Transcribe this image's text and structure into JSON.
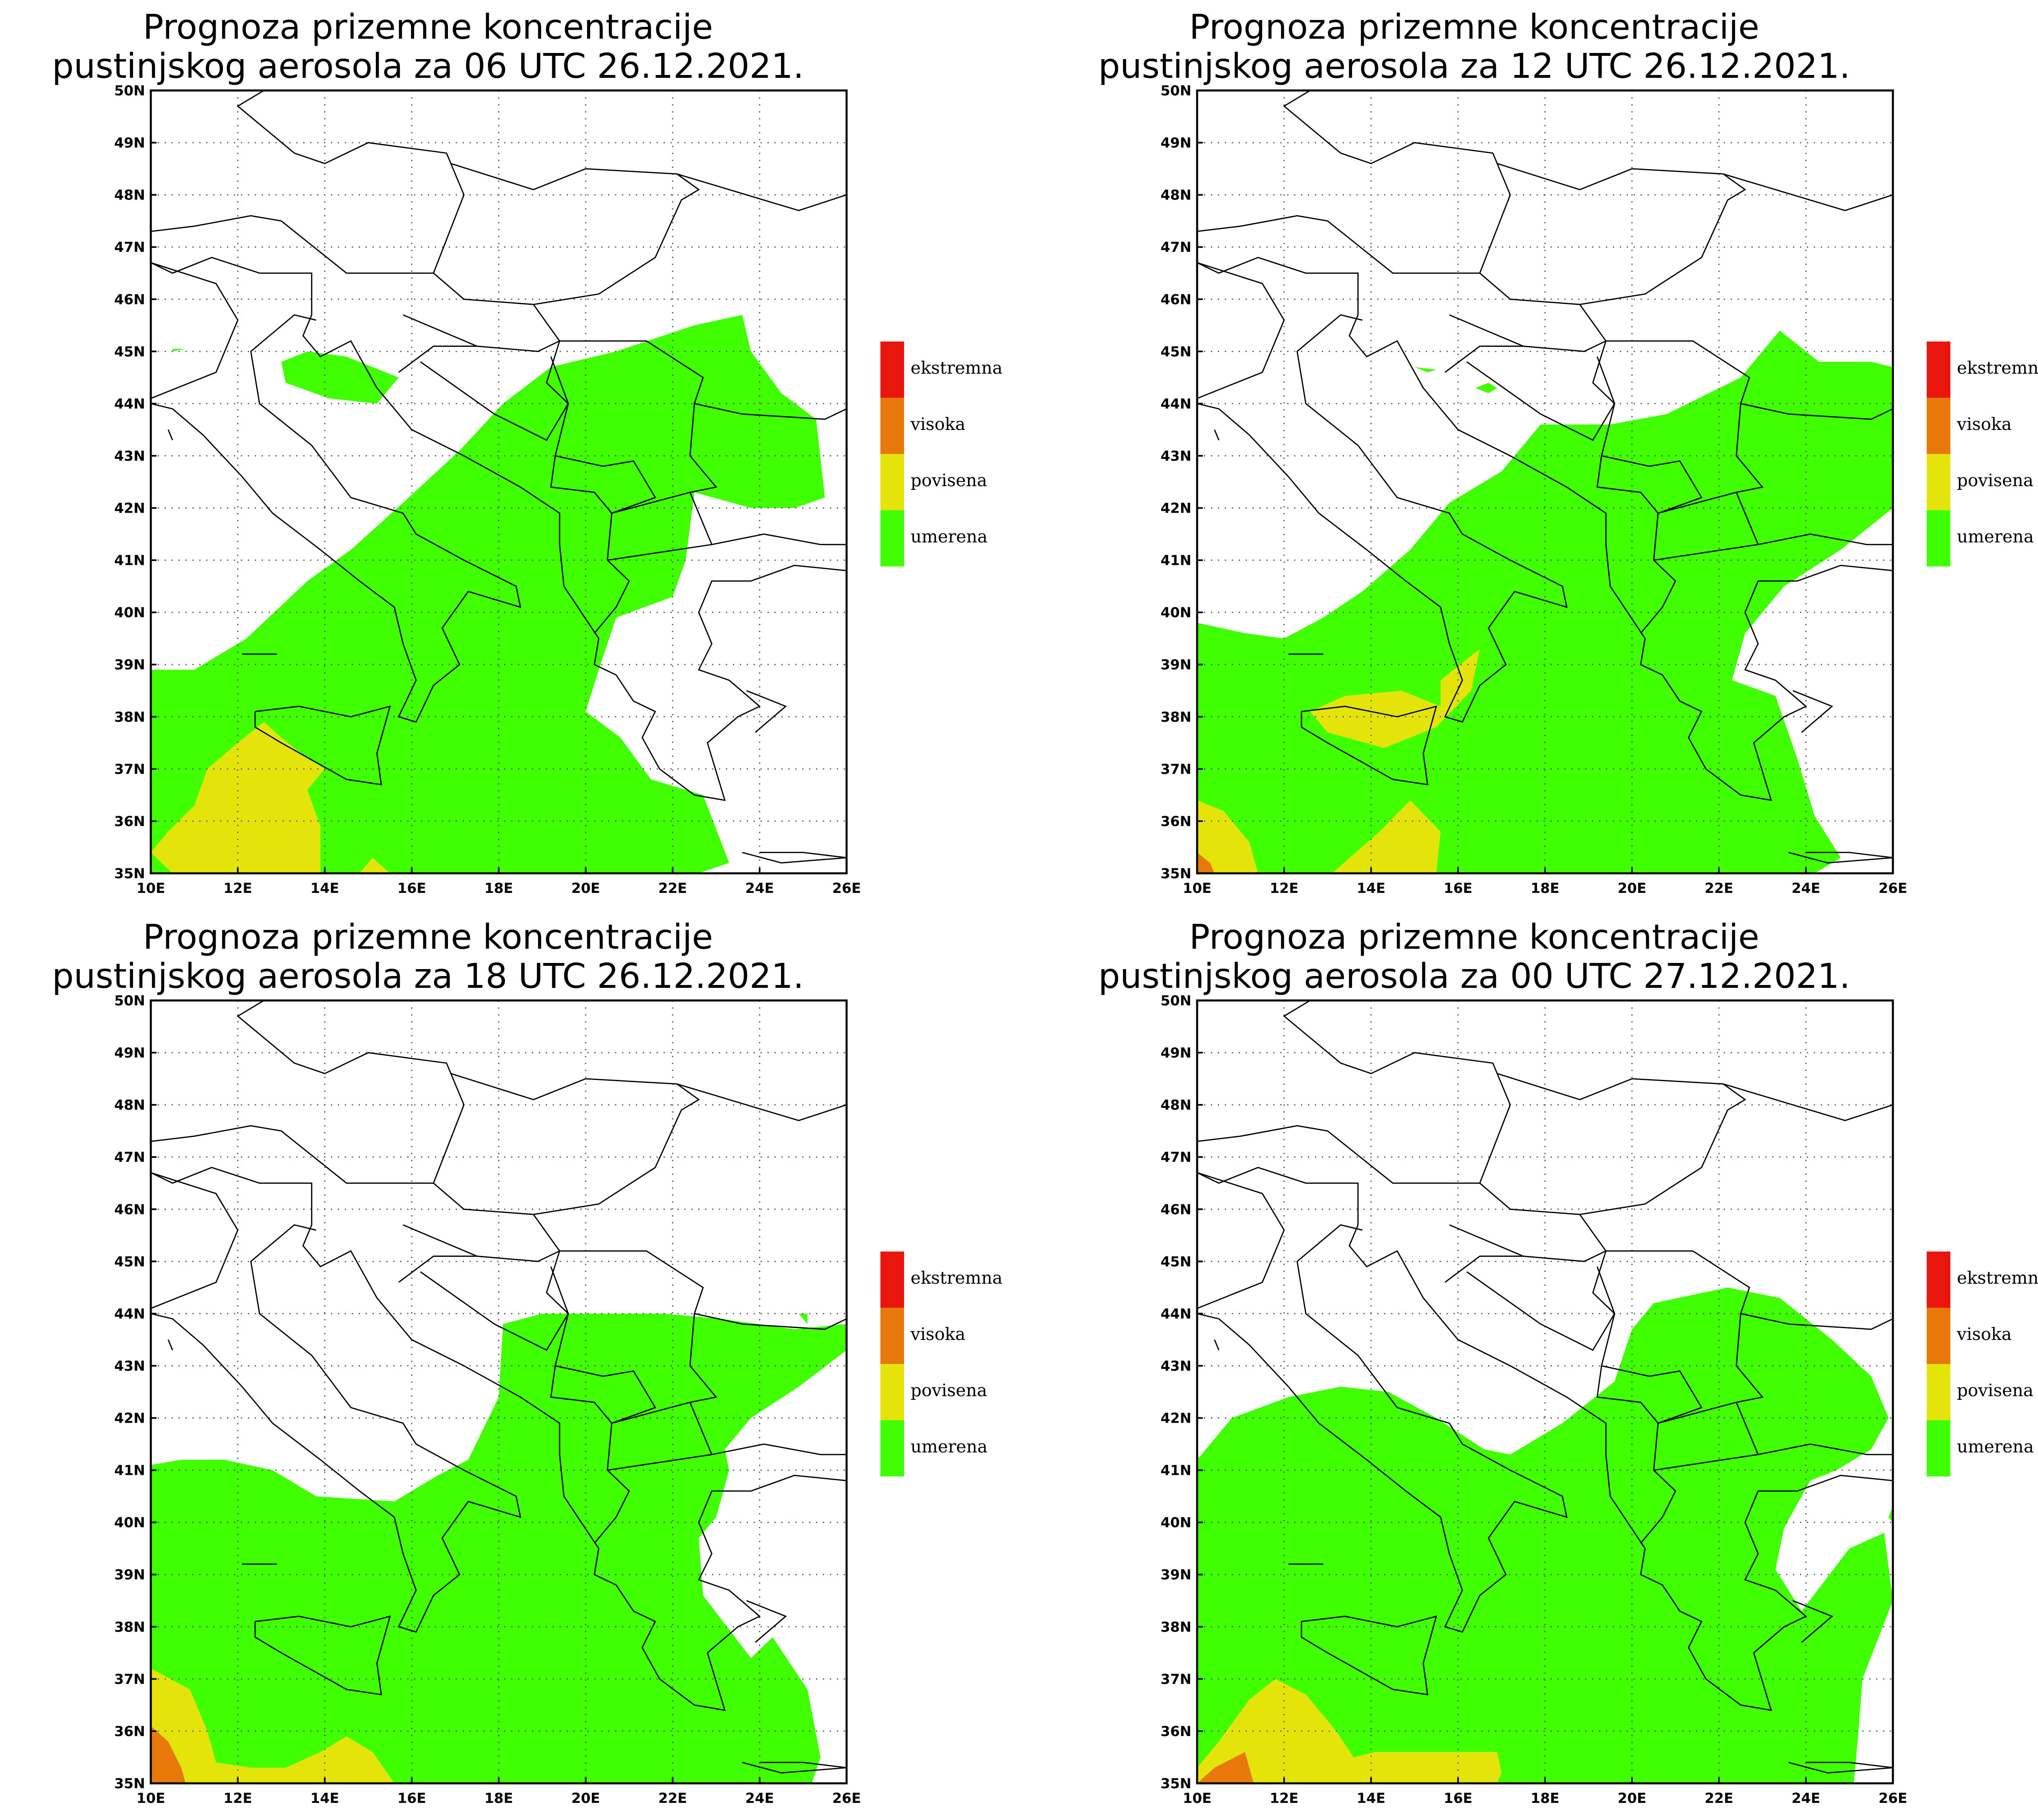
{
  "colors": {
    "ekstremna": "#e8160c",
    "visoka": "#e8780a",
    "povisena": "#e4e40a",
    "umerena": "#40ff00",
    "border": "#000000"
  },
  "legend": [
    {
      "key": "ekstremna",
      "label": "ekstremna"
    },
    {
      "key": "visoka",
      "label": "visoka"
    },
    {
      "key": "povisena",
      "label": "povisena"
    },
    {
      "key": "umerena",
      "label": "umerena"
    }
  ],
  "axes": {
    "lon_labels": [
      "10E",
      "12E",
      "14E",
      "16E",
      "18E",
      "20E",
      "22E",
      "24E",
      "26E"
    ],
    "lat_labels": [
      "35N",
      "36N",
      "37N",
      "38N",
      "39N",
      "40N",
      "41N",
      "42N",
      "43N",
      "44N",
      "45N",
      "46N",
      "47N",
      "48N",
      "49N",
      "50N"
    ],
    "lon_range": [
      10,
      26
    ],
    "lat_range": [
      35,
      50
    ],
    "grid": "dotted"
  },
  "panels": [
    {
      "title_line1": "Prognoza prizemne koncentracije",
      "title_line2": "pustinjskog aerosola za 06 UTC 26.12.2021."
    },
    {
      "title_line1": "Prognoza prizemne koncentracije",
      "title_line2": "pustinjskog aerosola za 12 UTC 26.12.2021."
    },
    {
      "title_line1": "Prognoza prizemne koncentracije",
      "title_line2": "pustinjskog aerosola za 18 UTC 26.12.2021."
    },
    {
      "title_line1": "Prognoza prizemne koncentracije",
      "title_line2": "pustinjskog aerosola za 00 UTC 27.12.2021."
    }
  ]
}
